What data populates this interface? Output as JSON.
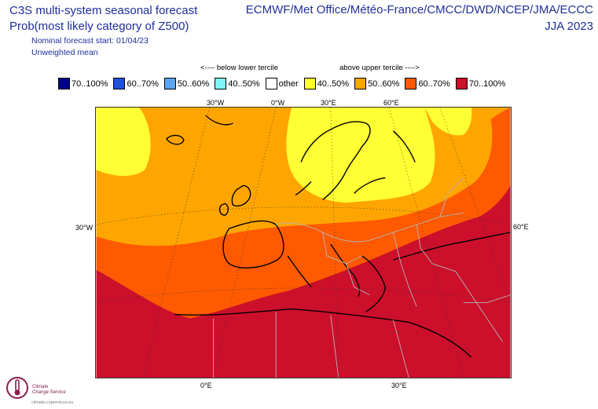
{
  "header": {
    "title_line1": "C3S multi-system seasonal forecast",
    "title_line2": "Prob(most likely category of Z500)",
    "nominal_start": "Nominal forecast start: 01/04/23",
    "weighting": "Unweighted mean",
    "centres": "ECMWF/Met Office/Météo-France/CMCC/DWD/NCEP/JMA/ECCC",
    "season": "JJA 2023"
  },
  "legend": {
    "below_label": "<---- below lower tercile",
    "above_label": "above upper tercile ---->",
    "items": [
      {
        "label": "70..100%",
        "color": "#00008b"
      },
      {
        "label": "60..70%",
        "color": "#1f4fe0"
      },
      {
        "label": "50..60%",
        "color": "#5aa6f0"
      },
      {
        "label": "40..50%",
        "color": "#7ff5f5"
      },
      {
        "label": "other",
        "color": "#ffffff"
      },
      {
        "label": "40..50%",
        "color": "#ffff33"
      },
      {
        "label": "50..60%",
        "color": "#ffa500"
      },
      {
        "label": "60..70%",
        "color": "#ff5a00"
      },
      {
        "label": "70..100%",
        "color": "#cc0f2b"
      }
    ]
  },
  "axes": {
    "top_lon": [
      "30°W",
      "0°W",
      "30°E",
      "60°E"
    ],
    "left_lat": "30°W",
    "right_lat": "60°E",
    "bottom_lon": [
      "0°E",
      "30°E"
    ]
  },
  "map": {
    "dominant_category": "above upper tercile",
    "zones": [
      {
        "name": "north-scandinavia",
        "category": "40..50%",
        "color": "#ffff33"
      },
      {
        "name": "north-atlantic-eastern-europe",
        "category": "50..60%",
        "color": "#ffa500"
      },
      {
        "name": "central-europe-band",
        "category": "60..70%",
        "color": "#ff5a00"
      },
      {
        "name": "mediterranean-north-africa-middle-east",
        "category": "70..100%",
        "color": "#cc0f2b"
      }
    ]
  },
  "logo": {
    "name_line1": "Climate",
    "name_line2": "Change Service",
    "url": "climate.copernicus.eu"
  }
}
